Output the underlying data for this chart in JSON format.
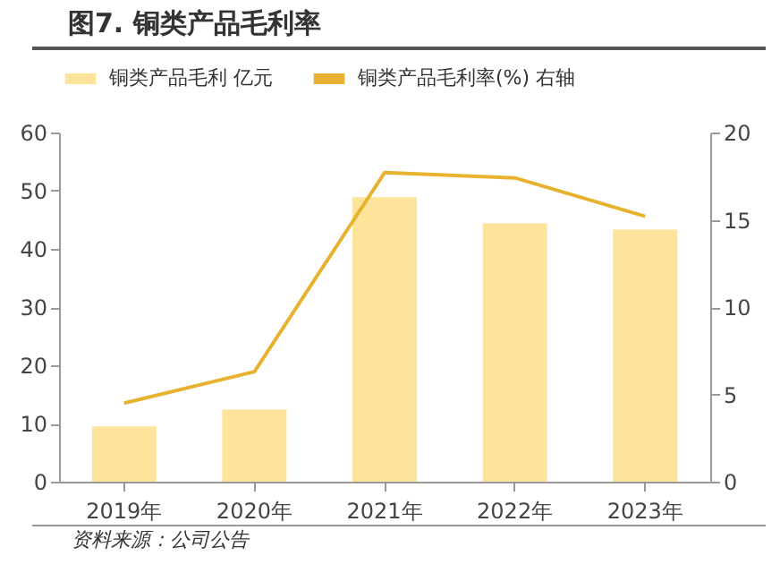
{
  "chart_data": {
    "type": "bar",
    "title": "图7. 铜类产品毛利率",
    "categories": [
      "2019年",
      "2020年",
      "2021年",
      "2022年",
      "2023年"
    ],
    "series": [
      {
        "name": "铜类产品毛利 亿元",
        "color": "#fee49a",
        "values": [
          9.5,
          12.4,
          48.9,
          44.4,
          43.3
        ]
      },
      {
        "name": "铜类产品毛利率(%) 右轴",
        "type": "line",
        "axis": "y2",
        "color": "#e8b231",
        "values": [
          4.5,
          6.3,
          17.7,
          17.4,
          15.2
        ]
      }
    ],
    "ylim": [
      0,
      60
    ],
    "yticks": [
      0,
      10,
      20,
      30,
      40,
      50,
      60
    ],
    "y2lim": [
      0,
      20
    ],
    "y2ticks": [
      0,
      5,
      10,
      15,
      20
    ],
    "grid": false,
    "legend": "top",
    "annotations": [
      "资料来源：公司公告"
    ]
  }
}
